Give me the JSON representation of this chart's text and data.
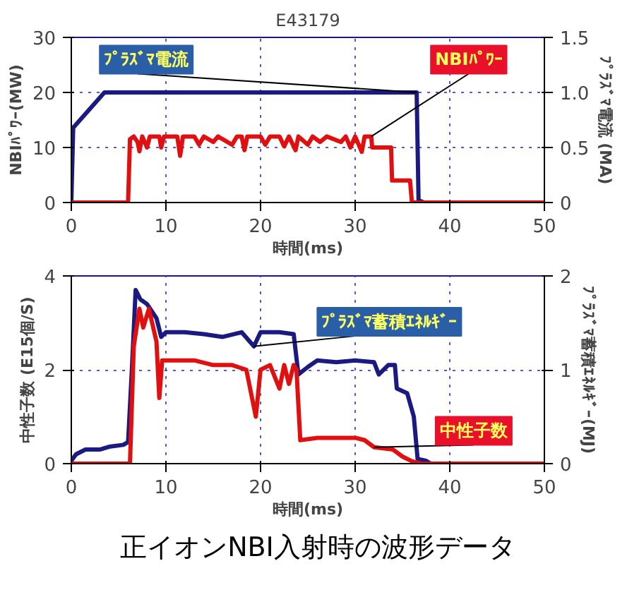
{
  "chart_data": [
    {
      "type": "line",
      "title": "E43179",
      "xlabel": "時間(ms)",
      "ylabel": "NBIﾊﾟﾜｰ(MW)",
      "y2label": "ﾌﾟﾗｽﾞﾏ電流 (MA)",
      "xlim": [
        0,
        50
      ],
      "xticks": [
        0,
        10,
        20,
        30,
        40,
        50
      ],
      "ylim": [
        0,
        30
      ],
      "yticks": [
        0,
        10,
        20,
        30
      ],
      "y2lim": [
        0,
        1.5
      ],
      "y2ticks": [
        0,
        0.5,
        {
          "value": 1,
          "label": "1.0"
        },
        1.5
      ],
      "grid": true,
      "series": [
        {
          "name": "ﾌﾟﾗｽﾞﾏ電流",
          "color": "#1a1a80",
          "axis": "y2",
          "x": [
            0,
            0.2,
            3.5,
            9,
            36.5,
            36.7,
            37.3,
            50
          ],
          "values": [
            0,
            0.68,
            1.0,
            1.0,
            1.0,
            0.02,
            0,
            0
          ]
        },
        {
          "name": "NBIﾊﾟﾜｰ",
          "color": "#e01010",
          "x": [
            0,
            6.0,
            6.2,
            6.6,
            7.0,
            7.2,
            7.5,
            8,
            8.3,
            9.3,
            9.5,
            9.8,
            11.2,
            11.5,
            11.8,
            13,
            13.5,
            14,
            15,
            15.5,
            17,
            17.5,
            18,
            18.3,
            18.6,
            20,
            20.5,
            21,
            22,
            22.5,
            23,
            23.7,
            24,
            25,
            25.5,
            26.3,
            27,
            28.5,
            29,
            29.5,
            30,
            30.7,
            31,
            31.7,
            31.8,
            33.8,
            33.9,
            35.8,
            36,
            50
          ],
          "values": [
            0,
            0,
            11.5,
            12,
            11,
            9.3,
            12,
            10,
            12,
            12,
            10,
            12,
            12,
            8.5,
            12,
            12,
            10.5,
            12,
            11,
            12,
            10.5,
            12,
            12,
            9.5,
            12,
            12,
            10.5,
            12,
            12,
            10.2,
            12,
            9.5,
            12,
            10.5,
            12,
            11,
            12,
            11,
            12,
            10,
            12,
            9.2,
            12,
            12,
            10,
            10,
            4,
            4,
            0,
            0
          ]
        }
      ]
    },
    {
      "type": "line",
      "xlabel": "時間(ms)",
      "ylabel": "中性子数 (E15個/S)",
      "y2label": "ﾌﾟﾗｽﾞﾏ蓄積ｴﾈﾙｷﾞｰ(MJ)",
      "xlim": [
        0,
        50
      ],
      "xticks": [
        0,
        10,
        20,
        30,
        40,
        50
      ],
      "ylim": [
        0,
        4
      ],
      "yticks": [
        0,
        2,
        4
      ],
      "y2lim": [
        0,
        2
      ],
      "y2ticks": [
        0,
        1,
        2
      ],
      "grid": true,
      "annotations": [
        "正イオンNBI入射時の波形データ"
      ],
      "series": [
        {
          "name": "ﾌﾟﾗｽﾞﾏ蓄積ｴﾈﾙｷﾞｰ",
          "color": "#1a1a80",
          "axis": "y2",
          "x": [
            0,
            0.5,
            1.5,
            3,
            4,
            5.5,
            6.0,
            6.4,
            6.8,
            7.3,
            8,
            9,
            9.5,
            10,
            12,
            14,
            16,
            18,
            19.3,
            20,
            22,
            23.5,
            24,
            25,
            26,
            28,
            30,
            32,
            32.5,
            33.5,
            34.2,
            34.4,
            35.5,
            36.2,
            36.6,
            37.5,
            38,
            50
          ],
          "values": [
            0.03,
            0.1,
            0.15,
            0.15,
            0.18,
            0.2,
            0.23,
            1.0,
            1.85,
            1.75,
            1.7,
            1.55,
            1.35,
            1.4,
            1.4,
            1.38,
            1.35,
            1.4,
            1.25,
            1.4,
            1.4,
            1.38,
            0.95,
            1.03,
            1.1,
            1.08,
            1.1,
            1.08,
            0.95,
            1.05,
            1.05,
            0.8,
            0.75,
            0.5,
            0.05,
            0.03,
            0,
            0
          ]
        },
        {
          "name": "中性子数",
          "color": "#e01010",
          "x": [
            0,
            6.2,
            6.6,
            7.2,
            7.6,
            8.2,
            9,
            9.3,
            9.6,
            11,
            13,
            15,
            17,
            18.5,
            19,
            19.5,
            20,
            21,
            22,
            22.5,
            23,
            23.5,
            23.8,
            24.2,
            26,
            28,
            30,
            31,
            32,
            34,
            35,
            36,
            37,
            50
          ],
          "values": [
            0,
            0,
            2.5,
            3.3,
            2.9,
            3.3,
            2.6,
            1.4,
            2.2,
            2.2,
            2.2,
            2.1,
            2.1,
            2.0,
            1.5,
            1.0,
            2.0,
            2.1,
            1.6,
            2.1,
            1.7,
            2.1,
            2.0,
            0.5,
            0.55,
            0.55,
            0.55,
            0.5,
            0.35,
            0.3,
            0.15,
            0.05,
            0,
            0
          ]
        }
      ]
    }
  ]
}
